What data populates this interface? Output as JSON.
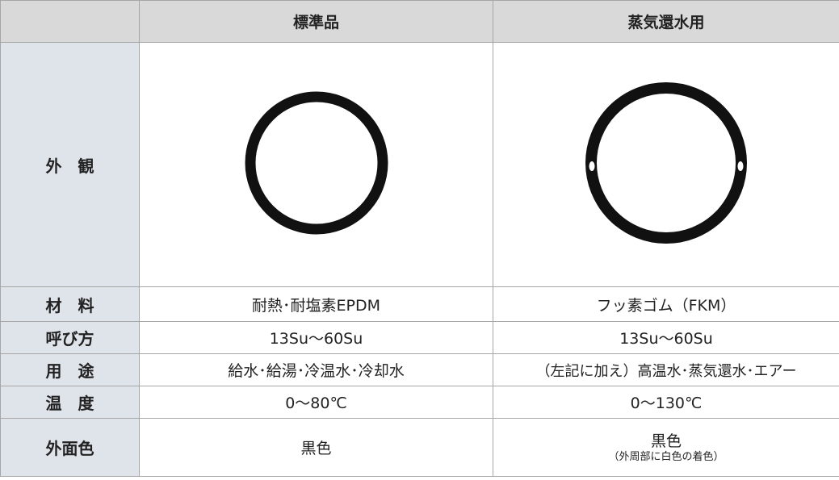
{
  "table": {
    "header": {
      "columns": [
        "標準品",
        "蒸気還水用"
      ]
    },
    "rows": [
      {
        "label": "外　観"
      },
      {
        "label": "材　料",
        "standard": "耐熱･耐塩素EPDM",
        "steam": "フッ素ゴム（FKM）"
      },
      {
        "label": "呼び方",
        "standard": "13Su～60Su",
        "steam": "13Su～60Su"
      },
      {
        "label": "用　途",
        "standard": "給水･給湯･冷温水･冷却水",
        "steam": "（左記に加え）高温水･蒸気還水･エアー"
      },
      {
        "label": "温　度",
        "standard": "0～80℃",
        "steam": "0～130℃"
      },
      {
        "label": "外面色",
        "standard": "黒色",
        "steam": "黒色",
        "steam_note": "（外周部に白色の着色）"
      }
    ]
  }
}
